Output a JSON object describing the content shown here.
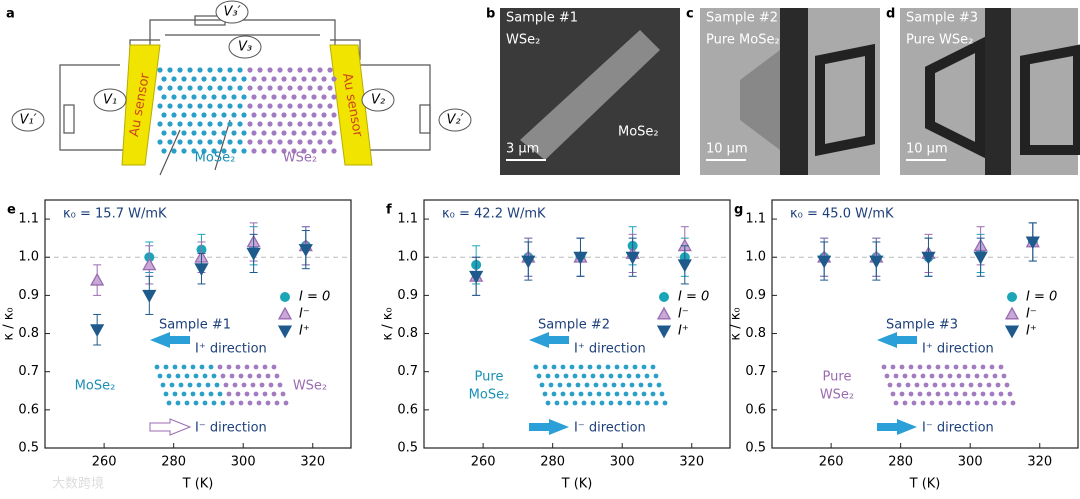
{
  "panel_a": {
    "label": "a",
    "voltmeters": [
      "V₁′",
      "V₁",
      "V₃",
      "V₃′",
      "V₂",
      "V₂′"
    ],
    "sensors": [
      "Au sensor",
      "Au sensor"
    ],
    "materials": [
      "MoSe₂",
      "WSe₂"
    ]
  },
  "panels_bcd": [
    {
      "label": "b",
      "lines": [
        "Sample #1",
        "WSe₂"
      ],
      "extra": "MoSe₂",
      "scale": "3 µm"
    },
    {
      "label": "c",
      "lines": [
        "Sample #2",
        "Pure MoSe₂"
      ],
      "scale": "10 µm"
    },
    {
      "label": "d",
      "lines": [
        "Sample #3",
        "Pure WSe₂"
      ],
      "scale": "10 µm"
    }
  ],
  "watermark": "大数跨境",
  "chart_data": [
    {
      "type": "scatter",
      "panel": "e",
      "annotation": "κ₀ = 15.7 W/mK",
      "xlabel": "T (K)",
      "ylabel": "κ / κ₀",
      "x": [
        258,
        273,
        288,
        303,
        318
      ],
      "xlim": [
        243,
        331
      ],
      "xticks": [
        260,
        280,
        300,
        320
      ],
      "ylim": [
        0.5,
        1.15
      ],
      "yticks": [
        0.5,
        0.6,
        0.7,
        0.8,
        0.9,
        {
          "value": 1,
          "label": "1.0"
        },
        1.1
      ],
      "reference_line": 1,
      "sample": "Sample #1",
      "i_plus": "I⁺ direction",
      "i_minus": "I⁻ direction",
      "materials": [
        "MoSe₂",
        "WSe₂"
      ],
      "series": [
        {
          "name": "I = 0",
          "color": "#1aa6b7",
          "marker": "circle",
          "values": [
            null,
            1.0,
            1.02,
            1.03,
            1.03
          ],
          "errors": [
            null,
            0.04,
            0.04,
            0.05,
            0.05
          ]
        },
        {
          "name": "I⁻",
          "color": "#9a6bb0",
          "marker": "triangle-up",
          "values": [
            0.94,
            0.98,
            1.0,
            1.04,
            1.03
          ],
          "errors": [
            0.04,
            0.05,
            0.04,
            0.05,
            0.05
          ]
        },
        {
          "name": "I⁺",
          "color": "#1f5a8c",
          "marker": "triangle-down",
          "values": [
            0.81,
            0.9,
            0.97,
            1.01,
            1.02
          ],
          "errors": [
            0.04,
            0.05,
            0.04,
            0.05,
            0.05
          ]
        }
      ]
    },
    {
      "type": "scatter",
      "panel": "f",
      "annotation": "κ₀ = 42.2 W/mK",
      "xlabel": "T (K)",
      "ylabel": "κ / κ₀",
      "x": [
        258,
        273,
        288,
        303,
        318
      ],
      "xlim": [
        243,
        331
      ],
      "xticks": [
        260,
        280,
        300,
        320
      ],
      "ylim": [
        0.5,
        1.15
      ],
      "yticks": [
        0.5,
        0.6,
        0.7,
        0.8,
        0.9,
        {
          "value": 1,
          "label": "1.0"
        },
        1.1
      ],
      "reference_line": 1,
      "sample": "Sample #2",
      "i_plus": "I⁺ direction",
      "i_minus": "I⁻ direction",
      "materials": [
        "Pure",
        "MoSe₂"
      ],
      "series": [
        {
          "name": "I = 0",
          "color": "#1aa6b7",
          "marker": "circle",
          "values": [
            0.98,
            1.0,
            1.0,
            1.03,
            1.0
          ],
          "errors": [
            0.05,
            0.05,
            0.05,
            0.05,
            0.05
          ]
        },
        {
          "name": "I⁻",
          "color": "#9a6bb0",
          "marker": "triangle-up",
          "values": [
            0.95,
            1.0,
            1.0,
            1.01,
            1.03
          ],
          "errors": [
            0.05,
            0.05,
            0.05,
            0.05,
            0.05
          ]
        },
        {
          "name": "I⁺",
          "color": "#1f5a8c",
          "marker": "triangle-down",
          "values": [
            0.95,
            0.99,
            1.0,
            1.0,
            0.98
          ],
          "errors": [
            0.05,
            0.05,
            0.05,
            0.05,
            0.05
          ]
        }
      ]
    },
    {
      "type": "scatter",
      "panel": "g",
      "annotation": "κ₀ = 45.0 W/mK",
      "xlabel": "T (K)",
      "ylabel": "κ / κ₀",
      "x": [
        258,
        273,
        288,
        303,
        318
      ],
      "xlim": [
        243,
        331
      ],
      "xticks": [
        260,
        280,
        300,
        320
      ],
      "ylim": [
        0.5,
        1.15
      ],
      "yticks": [
        0.5,
        0.6,
        0.7,
        0.8,
        0.9,
        {
          "value": 1,
          "label": "1.0"
        },
        1.1
      ],
      "reference_line": 1,
      "sample": "Sample #3",
      "i_plus": "I⁺ direction",
      "i_minus": "I⁻ direction",
      "materials": [
        "Pure",
        "WSe₂"
      ],
      "series": [
        {
          "name": "I = 0",
          "color": "#1aa6b7",
          "marker": "circle",
          "values": [
            1.0,
            1.0,
            1.0,
            1.01,
            1.04
          ],
          "errors": [
            0.05,
            0.05,
            0.05,
            0.05,
            0.05
          ]
        },
        {
          "name": "I⁻",
          "color": "#9a6bb0",
          "marker": "triangle-up",
          "values": [
            1.0,
            1.0,
            1.01,
            1.03,
            1.04
          ],
          "errors": [
            0.05,
            0.05,
            0.05,
            0.05,
            0.05
          ]
        },
        {
          "name": "I⁺",
          "color": "#1f5a8c",
          "marker": "triangle-down",
          "values": [
            0.99,
            0.99,
            1.0,
            1.0,
            1.04
          ],
          "errors": [
            0.05,
            0.05,
            0.05,
            0.05,
            0.05
          ]
        }
      ]
    }
  ]
}
